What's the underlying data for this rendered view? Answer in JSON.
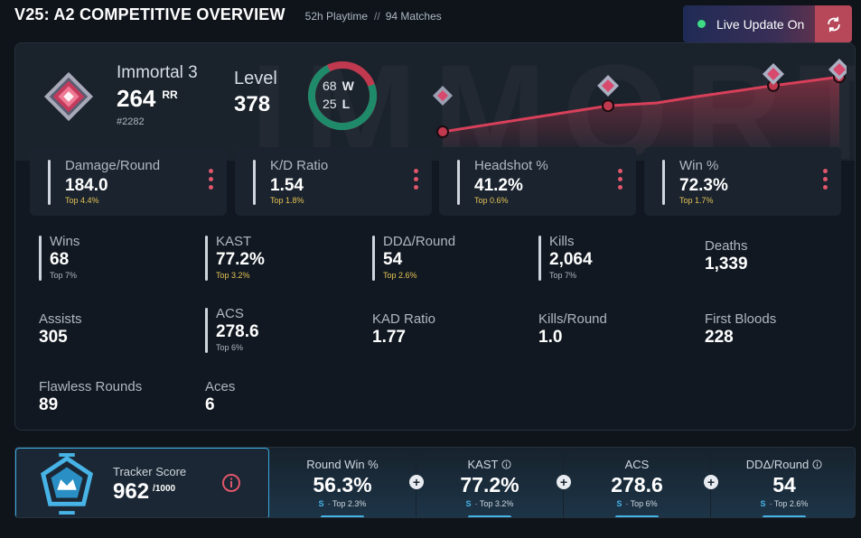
{
  "header": {
    "title": "V25: A2 COMPETITIVE OVERVIEW",
    "playtime": "52h Playtime",
    "separator": "//",
    "matches": "94 Matches"
  },
  "live_update": {
    "label": "Live Update On",
    "status_color": "#3ddc84"
  },
  "profile": {
    "rank_name": "Immortal 3",
    "rr_value": "264",
    "rr_unit": "RR",
    "leaderboard": "#2282",
    "level_label": "Level",
    "level_value": "378",
    "wins_value": "68",
    "wins_letter": "W",
    "losses_value": "25",
    "losses_letter": "L"
  },
  "rank_history": {
    "points": [
      0.0,
      0.18,
      0.2,
      0.24,
      0.32,
      0.38
    ]
  },
  "top_stats": [
    {
      "label": "Damage/Round",
      "value": "184.0",
      "percentile": "Top 4.4%"
    },
    {
      "label": "K/D Ratio",
      "value": "1.54",
      "percentile": "Top 1.8%"
    },
    {
      "label": "Headshot %",
      "value": "41.2%",
      "percentile": "Top 0.6%"
    },
    {
      "label": "Win %",
      "value": "72.3%",
      "percentile": "Top 1.7%"
    }
  ],
  "stats": {
    "wins": {
      "label": "Wins",
      "value": "68",
      "percentile": "Top 7%"
    },
    "kast": {
      "label": "KAST",
      "value": "77.2%",
      "percentile": "Top 3.2%"
    },
    "dda": {
      "label": "DDΔ/Round",
      "value": "54",
      "percentile": "Top 2.6%"
    },
    "kills": {
      "label": "Kills",
      "value": "2,064",
      "percentile": "Top 7%"
    },
    "deaths": {
      "label": "Deaths",
      "value": "1,339"
    },
    "assists": {
      "label": "Assists",
      "value": "305"
    },
    "acs": {
      "label": "ACS",
      "value": "278.6",
      "percentile": "Top 6%"
    },
    "kad": {
      "label": "KAD Ratio",
      "value": "1.77"
    },
    "kpr": {
      "label": "Kills/Round",
      "value": "1.0"
    },
    "first_bloods": {
      "label": "First Bloods",
      "value": "228"
    },
    "flawless": {
      "label": "Flawless Rounds",
      "value": "89"
    },
    "aces": {
      "label": "Aces",
      "value": "6"
    }
  },
  "tracker": {
    "label": "Tracker Score",
    "value": "962",
    "max": "/1000",
    "cells": [
      {
        "label": "Round Win %",
        "value": "56.3%",
        "grade": "S",
        "percentile": "· Top 2.3%"
      },
      {
        "label": "KAST",
        "value": "77.2%",
        "grade": "S",
        "percentile": "· Top 3.2%"
      },
      {
        "label": "ACS",
        "value": "278.6",
        "grade": "S",
        "percentile": "· Top 6%"
      },
      {
        "label": "DDΔ/Round",
        "value": "54",
        "grade": "S",
        "percentile": "· Top 2.6%"
      }
    ]
  },
  "colors": {
    "accent_red": "#e0566a",
    "accent_blue": "#47b3e6",
    "win_green": "#1f8a6a",
    "percentile_gold": "#e5c356"
  }
}
